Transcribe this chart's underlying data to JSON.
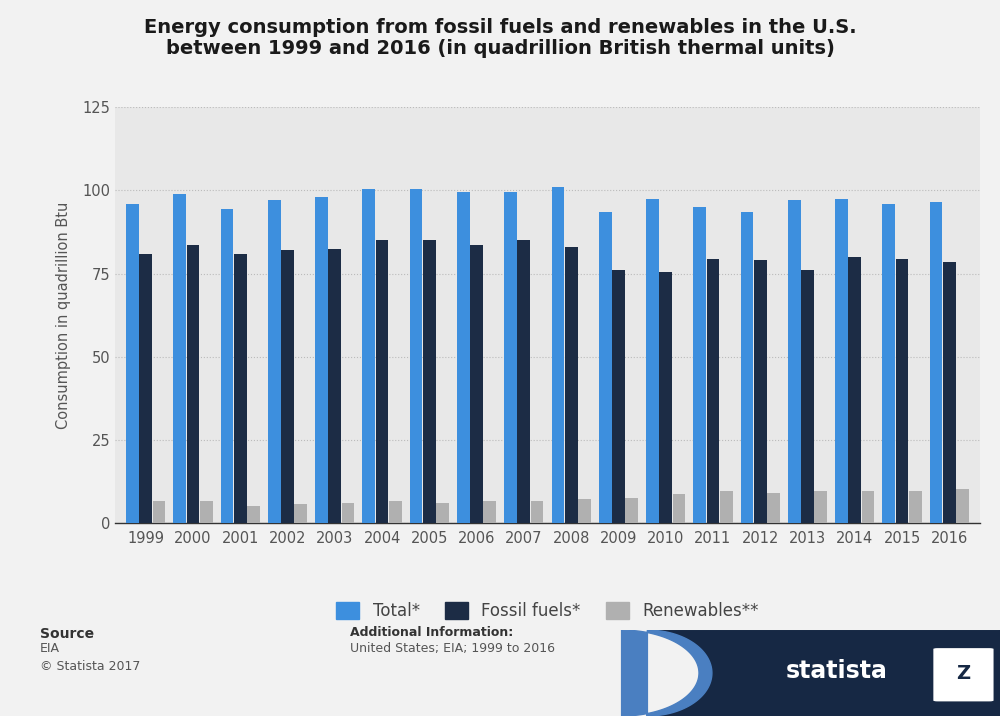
{
  "title_line1": "Energy consumption from fossil fuels and renewables in the U.S.",
  "title_line2": "between 1999 and 2016 (in quadrillion British thermal units)",
  "years": [
    1999,
    2000,
    2001,
    2002,
    2003,
    2004,
    2005,
    2006,
    2007,
    2008,
    2009,
    2010,
    2011,
    2012,
    2013,
    2014,
    2015,
    2016
  ],
  "total": [
    96,
    99,
    94.5,
    97,
    98,
    100.5,
    100.5,
    99.5,
    99.5,
    101,
    93.5,
    97.5,
    95,
    93.5,
    97,
    97.5,
    96,
    96.5
  ],
  "fossil_fuels": [
    81,
    83.5,
    81,
    82,
    82.5,
    85,
    85,
    83.5,
    85,
    83,
    76,
    75.5,
    79.5,
    79,
    76,
    80,
    79.5,
    78.5
  ],
  "renewables": [
    6.5,
    6.5,
    5,
    5.5,
    6,
    6.5,
    6,
    6.5,
    6.5,
    7,
    7.5,
    8.5,
    9.5,
    9,
    9.5,
    9.5,
    9.5,
    10
  ],
  "color_total": "#3d8fde",
  "color_fossil": "#1c2c45",
  "color_renewables": "#b0b0b0",
  "ylabel": "Consumption in quadrillion Btu",
  "ylim": [
    0,
    125
  ],
  "yticks": [
    0,
    25,
    50,
    75,
    100,
    125
  ],
  "plot_bg_color": "#e8e8e8",
  "fig_bg_color": "#f2f2f2",
  "legend_labels": [
    "Total*",
    "Fossil fuels*",
    "Renewables**"
  ],
  "source_label": "Source",
  "source_body": "EIA\n© Statista 2017",
  "additional_label": "Additional Information:",
  "additional_body": "United States; EIA; 1999 to 2016"
}
